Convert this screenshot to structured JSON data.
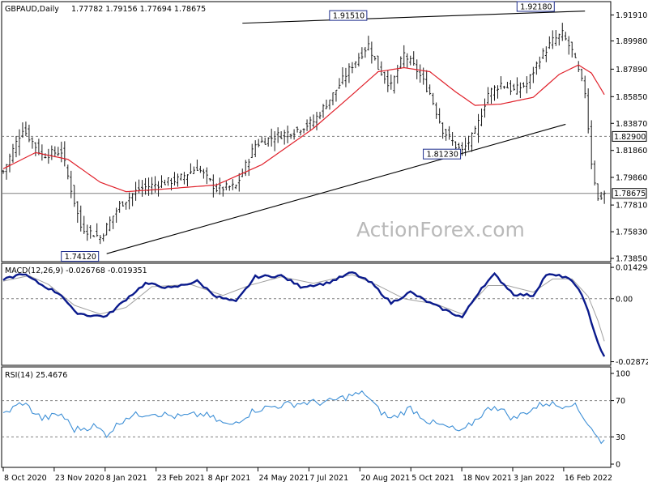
{
  "header": {
    "symbol": "GBPAUD,Daily",
    "ohlc": "1.77782 1.79156 1.77694 1.78675"
  },
  "watermark": "ActionForex.com",
  "colors": {
    "bars": "#1a1a1a",
    "ma": "#e0202a",
    "macd": "#0a1a8c",
    "signal": "#a0a0a0",
    "rsi": "#3d8fd6",
    "trend": "#000000",
    "grid": "#808080"
  },
  "chart_data": [
    {
      "type": "ohlc",
      "panel": "price",
      "y_ticks": [
        "1.91910",
        "1.89980",
        "1.87890",
        "1.85850",
        "1.83870",
        "1.81860",
        "1.79860",
        "1.77810",
        "1.75830",
        "1.73850"
      ],
      "ylim": [
        1.7355,
        1.929
      ],
      "x_ticks": [
        "8 Oct 2020",
        "23 Nov 2020",
        "8 Jan 2021",
        "23 Feb 2021",
        "8 Apr 2021",
        "24 May 2021",
        "7 Jul 2021",
        "20 Aug 2021",
        "5 Oct 2021",
        "18 Nov 2021",
        "3 Jan 2022",
        "16 Feb 2022"
      ],
      "level_labels": [
        {
          "text": "1.74120",
          "value": 1.7412,
          "date_index": 30
        },
        {
          "text": "1.91510",
          "value": 1.9151,
          "date_index": 113
        },
        {
          "text": "1.81230",
          "value": 1.8123,
          "date_index": 142
        },
        {
          "text": "1.92180",
          "value": 1.9218,
          "date_index": 171
        }
      ],
      "horizontal_lines": [
        {
          "value": 1.829,
          "label": "1.82900",
          "style": "dashed"
        },
        {
          "value": 1.78675,
          "label": "1.78675",
          "style": "solid"
        }
      ],
      "trendlines": [
        {
          "from": {
            "date_index": 74,
            "value": 1.913
          },
          "to": {
            "date_index": 180,
            "value": 1.922
          }
        },
        {
          "from": {
            "date_index": 32,
            "value": 1.742
          },
          "to": {
            "date_index": 174,
            "value": 1.838
          }
        }
      ],
      "close_anchors": [
        [
          0,
          1.803
        ],
        [
          6,
          1.835
        ],
        [
          12,
          1.815
        ],
        [
          18,
          1.818
        ],
        [
          24,
          1.762
        ],
        [
          30,
          1.754
        ],
        [
          36,
          1.778
        ],
        [
          42,
          1.79
        ],
        [
          48,
          1.794
        ],
        [
          54,
          1.797
        ],
        [
          60,
          1.806
        ],
        [
          66,
          1.79
        ],
        [
          72,
          1.792
        ],
        [
          78,
          1.823
        ],
        [
          84,
          1.829
        ],
        [
          90,
          1.833
        ],
        [
          96,
          1.84
        ],
        [
          102,
          1.86
        ],
        [
          108,
          1.882
        ],
        [
          113,
          1.897
        ],
        [
          116,
          1.88
        ],
        [
          120,
          1.866
        ],
        [
          124,
          1.89
        ],
        [
          128,
          1.878
        ],
        [
          132,
          1.861
        ],
        [
          136,
          1.834
        ],
        [
          140,
          1.822
        ],
        [
          142,
          1.818
        ],
        [
          146,
          1.832
        ],
        [
          150,
          1.861
        ],
        [
          154,
          1.868
        ],
        [
          158,
          1.863
        ],
        [
          162,
          1.868
        ],
        [
          166,
          1.887
        ],
        [
          170,
          1.9
        ],
        [
          173,
          1.905
        ],
        [
          176,
          1.892
        ],
        [
          180,
          1.862
        ],
        [
          182,
          1.81
        ],
        [
          184,
          1.782
        ],
        [
          186,
          1.787
        ]
      ],
      "series": [
        {
          "name": "MA",
          "values_anchor": [
            [
              0,
              1.805
            ],
            [
              10,
              1.817
            ],
            [
              20,
              1.812
            ],
            [
              30,
              1.795
            ],
            [
              38,
              1.788
            ],
            [
              50,
              1.79
            ],
            [
              66,
              1.793
            ],
            [
              80,
              1.808
            ],
            [
              96,
              1.835
            ],
            [
              108,
              1.86
            ],
            [
              116,
              1.877
            ],
            [
              124,
              1.88
            ],
            [
              132,
              1.877
            ],
            [
              140,
              1.862
            ],
            [
              146,
              1.852
            ],
            [
              154,
              1.853
            ],
            [
              164,
              1.858
            ],
            [
              172,
              1.875
            ],
            [
              178,
              1.882
            ],
            [
              182,
              1.876
            ],
            [
              186,
              1.86
            ]
          ]
        }
      ]
    },
    {
      "type": "line",
      "panel": "macd",
      "label": "MACD(12,26,9) -0.026768 -0.019351",
      "y_ticks": [
        "0.014294",
        "0.00",
        "-0.028723"
      ],
      "ylim": [
        -0.03,
        0.0158
      ],
      "series": [
        {
          "name": "MACD",
          "values_anchor": [
            [
              0,
              0.0085
            ],
            [
              6,
              0.0115
            ],
            [
              12,
              0.0062
            ],
            [
              18,
              0.0018
            ],
            [
              22,
              -0.006
            ],
            [
              26,
              -0.0075
            ],
            [
              32,
              -0.008
            ],
            [
              38,
              -0.0002
            ],
            [
              44,
              0.007
            ],
            [
              52,
              0.0048
            ],
            [
              60,
              0.008
            ],
            [
              66,
              0.001
            ],
            [
              72,
              -0.0015
            ],
            [
              78,
              0.01
            ],
            [
              86,
              0.0105
            ],
            [
              92,
              0.0055
            ],
            [
              100,
              0.007
            ],
            [
              108,
              0.012
            ],
            [
              114,
              0.007
            ],
            [
              120,
              -0.002
            ],
            [
              126,
              0.003
            ],
            [
              132,
              -0.002
            ],
            [
              138,
              -0.006
            ],
            [
              142,
              -0.0085
            ],
            [
              148,
              0.005
            ],
            [
              152,
              0.011
            ],
            [
              158,
              0.002
            ],
            [
              164,
              0.0015
            ],
            [
              168,
              0.011
            ],
            [
              174,
              0.01
            ],
            [
              178,
              0.005
            ],
            [
              181,
              -0.006
            ],
            [
              184,
              -0.02
            ],
            [
              186,
              -0.0268
            ]
          ]
        },
        {
          "name": "Signal",
          "values_anchor": [
            [
              0,
              0.008
            ],
            [
              8,
              0.0105
            ],
            [
              14,
              0.0065
            ],
            [
              22,
              -0.003
            ],
            [
              30,
              -0.007
            ],
            [
              38,
              -0.004
            ],
            [
              46,
              0.0055
            ],
            [
              58,
              0.0065
            ],
            [
              68,
              0.0015
            ],
            [
              76,
              0.006
            ],
            [
              86,
              0.01
            ],
            [
              96,
              0.007
            ],
            [
              108,
              0.011
            ],
            [
              116,
              0.006
            ],
            [
              124,
              0.0
            ],
            [
              134,
              -0.0025
            ],
            [
              142,
              -0.007
            ],
            [
              150,
              0.006
            ],
            [
              156,
              0.006
            ],
            [
              164,
              0.003
            ],
            [
              170,
              0.009
            ],
            [
              176,
              0.009
            ],
            [
              181,
              0.001
            ],
            [
              184,
              -0.01
            ],
            [
              186,
              -0.0194
            ]
          ]
        }
      ]
    },
    {
      "type": "line",
      "panel": "rsi",
      "label": "RSI(14) 25.4676",
      "y_ticks": [
        "100",
        "70",
        "30",
        "0"
      ],
      "levels": [
        70,
        30
      ],
      "ylim": [
        0,
        100
      ],
      "series": [
        {
          "name": "RSI",
          "values_anchor": [
            [
              0,
              55
            ],
            [
              6,
              68
            ],
            [
              12,
              50
            ],
            [
              18,
              55
            ],
            [
              22,
              38
            ],
            [
              28,
              42
            ],
            [
              32,
              33
            ],
            [
              38,
              52
            ],
            [
              46,
              57
            ],
            [
              54,
              52
            ],
            [
              62,
              55
            ],
            [
              70,
              42
            ],
            [
              78,
              60
            ],
            [
              86,
              65
            ],
            [
              94,
              68
            ],
            [
              100,
              68
            ],
            [
              108,
              76
            ],
            [
              112,
              78
            ],
            [
              116,
              60
            ],
            [
              120,
              50
            ],
            [
              126,
              62
            ],
            [
              132,
              46
            ],
            [
              138,
              40
            ],
            [
              142,
              35
            ],
            [
              148,
              55
            ],
            [
              152,
              65
            ],
            [
              158,
              50
            ],
            [
              162,
              58
            ],
            [
              168,
              68
            ],
            [
              172,
              64
            ],
            [
              176,
              68
            ],
            [
              180,
              50
            ],
            [
              183,
              35
            ],
            [
              185,
              22
            ],
            [
              186,
              25.5
            ]
          ]
        }
      ]
    }
  ]
}
